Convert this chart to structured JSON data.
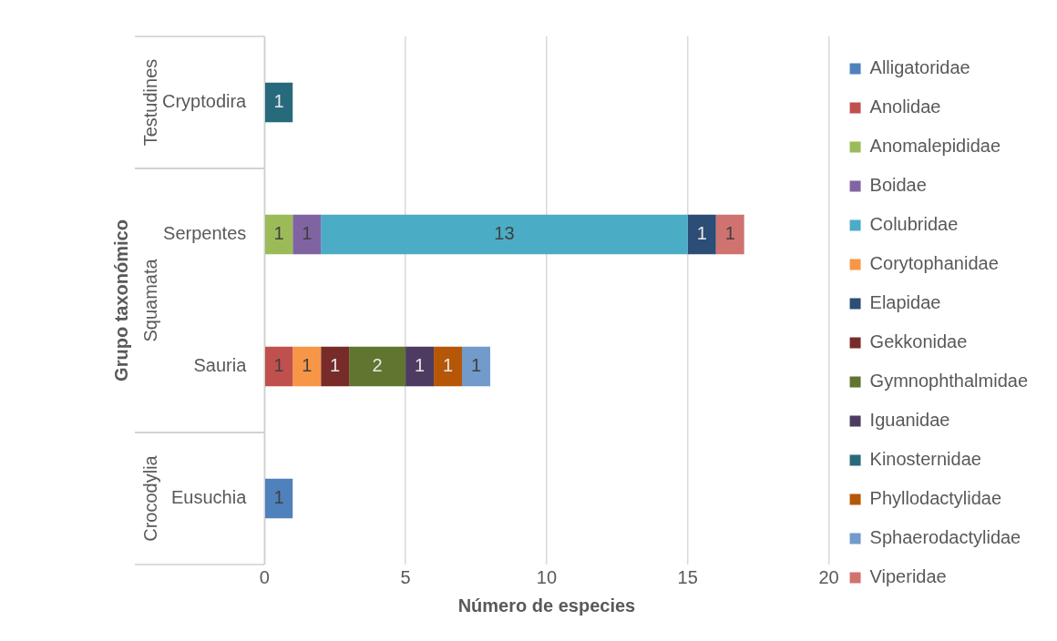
{
  "chart_data": {
    "type": "bar",
    "orientation": "horizontal",
    "stacked": true,
    "xlabel": "Número de especies",
    "ylabel": "Grupo taxonómico",
    "categories": [
      "Cryptodira",
      "Serpentes",
      "Sauria",
      "Eusuchia"
    ],
    "annotations": [
      "Testudines",
      "Squamata",
      "Crocodylia"
    ],
    "xlim": [
      0,
      20
    ],
    "xticks": [
      0,
      5,
      10,
      15,
      20
    ],
    "grid": "x",
    "legend": "right",
    "data_labels": true,
    "series": [
      {
        "name": "Alligatoridae",
        "color": "#4f81bd",
        "values": [
          null,
          null,
          null,
          1
        ]
      },
      {
        "name": "Anolidae",
        "color": "#c0504d",
        "values": [
          null,
          null,
          1,
          null
        ]
      },
      {
        "name": "Anomalepididae",
        "color": "#9bbb59",
        "values": [
          null,
          1,
          null,
          null
        ]
      },
      {
        "name": "Boidae",
        "color": "#8064a2",
        "values": [
          null,
          1,
          null,
          null
        ]
      },
      {
        "name": "Colubridae",
        "color": "#4bacc6",
        "values": [
          null,
          13,
          null,
          null
        ]
      },
      {
        "name": "Corytophanidae",
        "color": "#f79646",
        "values": [
          null,
          null,
          1,
          null
        ]
      },
      {
        "name": "Elapidae",
        "color": "#2c4d75",
        "values": [
          null,
          1,
          null,
          null
        ]
      },
      {
        "name": "Gekkonidae",
        "color": "#772c2a",
        "values": [
          null,
          null,
          1,
          null
        ]
      },
      {
        "name": "Gymnophthalmidae",
        "color": "#5f7530",
        "values": [
          null,
          null,
          2,
          null
        ]
      },
      {
        "name": "Iguanidae",
        "color": "#4d3b62",
        "values": [
          null,
          null,
          1,
          null
        ]
      },
      {
        "name": "Kinosternidae",
        "color": "#276a7c",
        "values": [
          1,
          null,
          null,
          null
        ]
      },
      {
        "name": "Phyllodactylidae",
        "color": "#b65708",
        "values": [
          null,
          null,
          1,
          null
        ]
      },
      {
        "name": "Sphaerodactylidae",
        "color": "#729aca",
        "values": [
          null,
          null,
          1,
          null
        ]
      },
      {
        "name": "Viperidae",
        "color": "#d07370",
        "values": [
          null,
          1,
          null,
          null
        ]
      }
    ]
  }
}
